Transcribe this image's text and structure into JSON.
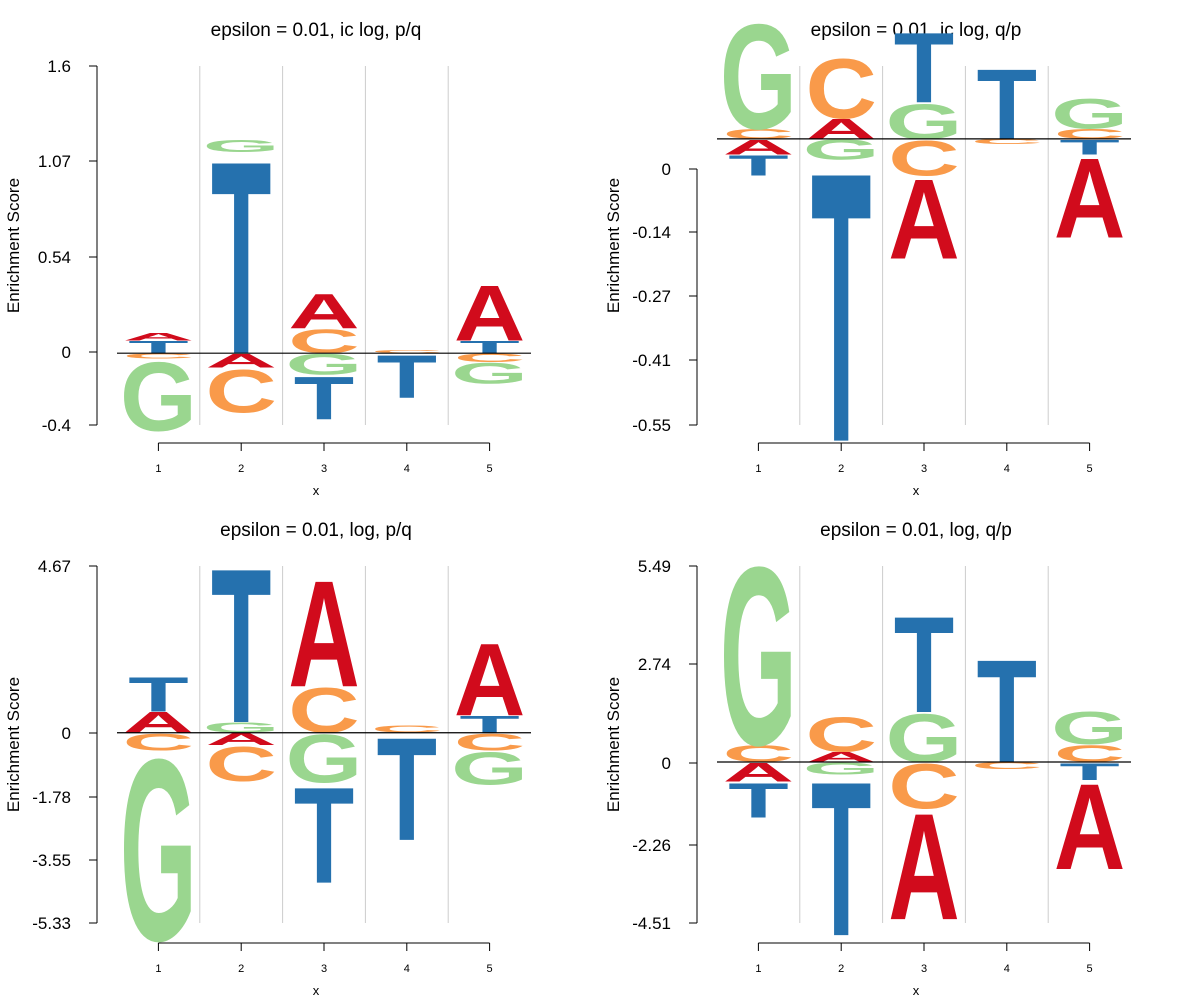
{
  "colors": {
    "A": "#d10b1c",
    "C": "#f99a4a",
    "G": "#9ad68f",
    "T": "#2571ae",
    "axis": "#000000",
    "divider": "#cccccc"
  },
  "chart_data": [
    {
      "type": "sequence-logo",
      "title": "epsilon = 0.01, ic log, p/q",
      "xlabel": "x",
      "ylabel": "Enrichment Score",
      "positions": [
        "1",
        "2",
        "3",
        "4",
        "5"
      ],
      "ylim": [
        -0.4,
        1.6
      ],
      "yticks": [
        "1.6",
        "1.07",
        "0.54",
        "0",
        "-0.4"
      ],
      "grid": "vertical dividers between positions",
      "columns": [
        [
          {
            "letter": "T",
            "value": 0.07
          },
          {
            "letter": "A",
            "value": 0.045
          },
          {
            "letter": "C",
            "value": -0.03
          },
          {
            "letter": "G",
            "value": -0.4
          }
        ],
        [
          {
            "letter": "T",
            "value": 1.12
          },
          {
            "letter": "G",
            "value": 0.07
          },
          {
            "letter": "A",
            "value": -0.08
          },
          {
            "letter": "C",
            "value": -0.25
          }
        ],
        [
          {
            "letter": "C",
            "value": 0.14
          },
          {
            "letter": "A",
            "value": 0.2
          },
          {
            "letter": "G",
            "value": -0.12
          },
          {
            "letter": "T",
            "value": -0.25
          }
        ],
        [
          {
            "letter": "C",
            "value": 0.02
          },
          {
            "letter": "T",
            "value": -0.25
          }
        ],
        [
          {
            "letter": "T",
            "value": 0.07
          },
          {
            "letter": "A",
            "value": 0.32
          },
          {
            "letter": "C",
            "value": -0.05
          },
          {
            "letter": "G",
            "value": -0.12
          }
        ]
      ]
    },
    {
      "type": "sequence-logo",
      "title": "epsilon = 0.01, ic log, q/p",
      "xlabel": "x",
      "ylabel": "Enrichment Score",
      "positions": [
        "1",
        "2",
        "3",
        "4",
        "5"
      ],
      "ylim": [
        -0.55,
        0.14
      ],
      "yticks": [
        "0",
        "-0.14",
        "-0.27",
        "-0.41",
        "-0.55"
      ],
      "grid": "vertical dividers between positions",
      "columns": [
        [
          {
            "letter": "C",
            "value": 0.02
          },
          {
            "letter": "G",
            "value": 0.21
          },
          {
            "letter": "A",
            "value": -0.03
          },
          {
            "letter": "T",
            "value": -0.04
          }
        ],
        [
          {
            "letter": "A",
            "value": 0.04
          },
          {
            "letter": "C",
            "value": 0.12
          },
          {
            "letter": "G",
            "value": -0.04
          },
          {
            "letter": "T",
            "value": -0.54
          }
        ],
        [
          {
            "letter": "G",
            "value": 0.07
          },
          {
            "letter": "T",
            "value": 0.14
          },
          {
            "letter": "C",
            "value": -0.07
          },
          {
            "letter": "A",
            "value": -0.16
          }
        ],
        [
          {
            "letter": "T",
            "value": 0.14
          },
          {
            "letter": "C",
            "value": -0.01
          }
        ],
        [
          {
            "letter": "C",
            "value": 0.02
          },
          {
            "letter": "G",
            "value": 0.06
          },
          {
            "letter": "T",
            "value": -0.03
          },
          {
            "letter": "A",
            "value": -0.16
          }
        ]
      ]
    },
    {
      "type": "sequence-logo",
      "title": "epsilon = 0.01, log, p/q",
      "xlabel": "x",
      "ylabel": "Enrichment Score",
      "positions": [
        "1",
        "2",
        "3",
        "4",
        "5"
      ],
      "ylim": [
        -5.33,
        4.67
      ],
      "yticks": [
        "4.67",
        "0",
        "-1.78",
        "-3.55",
        "-5.33"
      ],
      "grid": "vertical dividers between positions",
      "columns": [
        [
          {
            "letter": "A",
            "value": 0.6
          },
          {
            "letter": "T",
            "value": 1.0
          },
          {
            "letter": "C",
            "value": -0.5
          },
          {
            "letter": "G",
            "value": -5.3
          }
        ],
        [
          {
            "letter": "G",
            "value": 0.3
          },
          {
            "letter": "T",
            "value": 4.5
          },
          {
            "letter": "A",
            "value": -0.35
          },
          {
            "letter": "C",
            "value": -1.0
          }
        ],
        [
          {
            "letter": "C",
            "value": 1.3
          },
          {
            "letter": "A",
            "value": 3.1
          },
          {
            "letter": "G",
            "value": -1.4
          },
          {
            "letter": "T",
            "value": -2.8
          }
        ],
        [
          {
            "letter": "C",
            "value": 0.2
          },
          {
            "letter": "T",
            "value": -3.0
          }
        ],
        [
          {
            "letter": "T",
            "value": 0.5
          },
          {
            "letter": "A",
            "value": 2.1
          },
          {
            "letter": "C",
            "value": -0.5
          },
          {
            "letter": "G",
            "value": -0.95
          }
        ]
      ]
    },
    {
      "type": "sequence-logo",
      "title": "epsilon = 0.01, log, q/p",
      "xlabel": "x",
      "ylabel": "Enrichment Score",
      "positions": [
        "1",
        "2",
        "3",
        "4",
        "5"
      ],
      "ylim": [
        -4.51,
        5.49
      ],
      "yticks": [
        "5.49",
        "2.74",
        "0",
        "-2.26",
        "-4.51"
      ],
      "grid": "vertical dividers between positions",
      "columns": [
        [
          {
            "letter": "C",
            "value": 0.5
          },
          {
            "letter": "G",
            "value": 5.2
          },
          {
            "letter": "A",
            "value": -0.55
          },
          {
            "letter": "T",
            "value": -1.0
          }
        ],
        [
          {
            "letter": "A",
            "value": 0.3
          },
          {
            "letter": "C",
            "value": 1.0
          },
          {
            "letter": "G",
            "value": -0.35
          },
          {
            "letter": "T",
            "value": -4.5
          }
        ],
        [
          {
            "letter": "G",
            "value": 1.4
          },
          {
            "letter": "T",
            "value": 2.8
          },
          {
            "letter": "C",
            "value": -1.3
          },
          {
            "letter": "A",
            "value": -3.1
          }
        ],
        [
          {
            "letter": "T",
            "value": 3.0
          },
          {
            "letter": "C",
            "value": -0.2
          }
        ],
        [
          {
            "letter": "C",
            "value": 0.5
          },
          {
            "letter": "G",
            "value": 0.95
          },
          {
            "letter": "T",
            "value": -0.5
          },
          {
            "letter": "A",
            "value": -2.5
          }
        ]
      ]
    }
  ]
}
